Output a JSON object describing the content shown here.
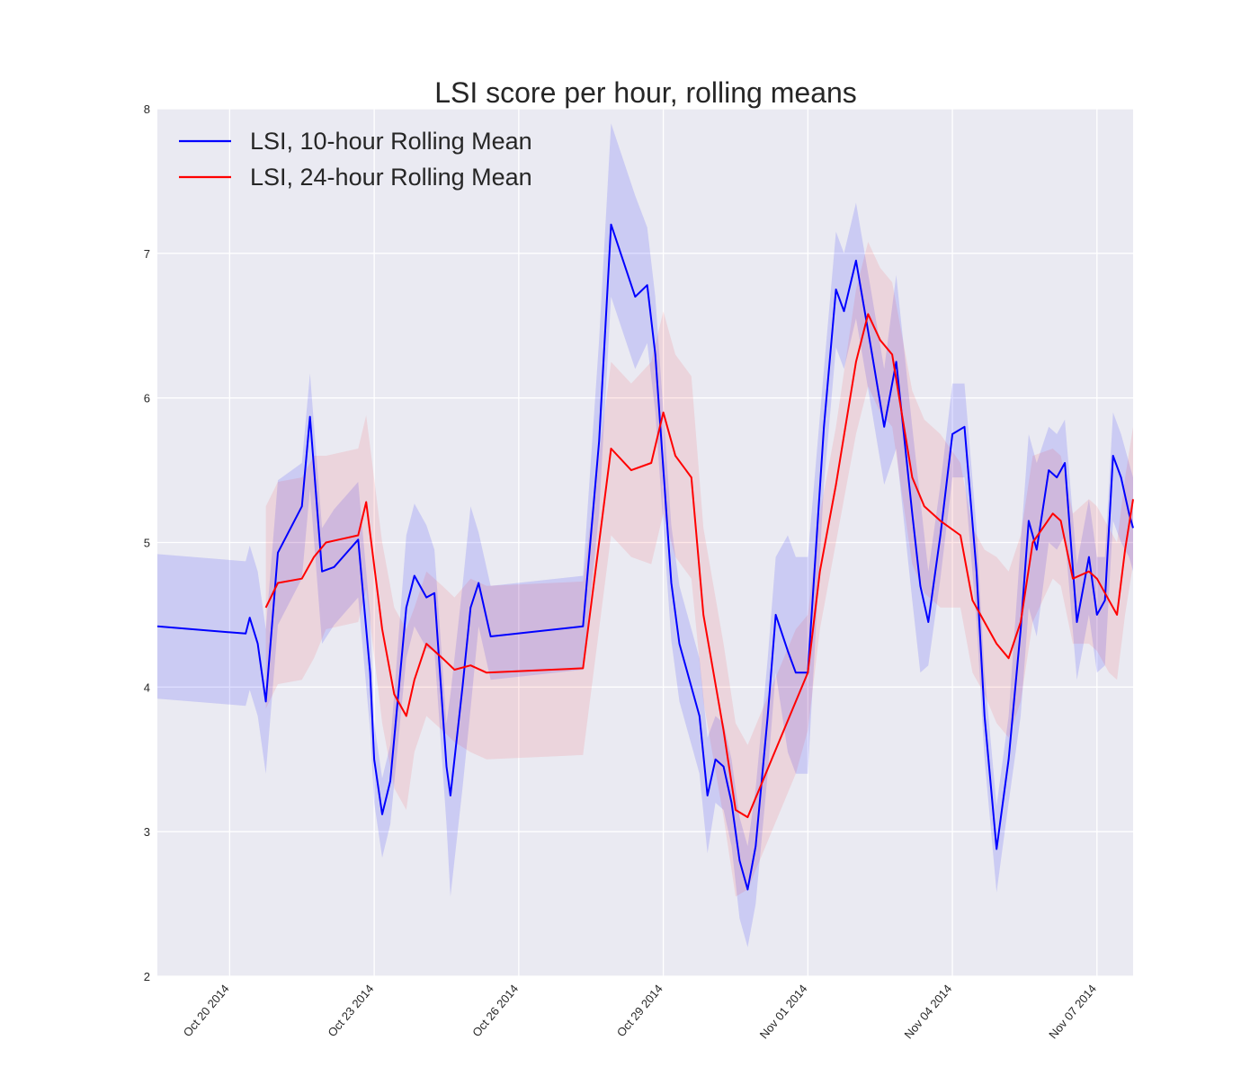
{
  "chart_data": {
    "type": "line",
    "title": "LSI score per hour, rolling means",
    "xlabel": "",
    "ylabel": "",
    "x_range": [
      "2014-10-18T12:00",
      "2014-11-07T18:00"
    ],
    "ylim": [
      2,
      8
    ],
    "y_ticks": [
      2,
      3,
      4,
      5,
      6,
      7,
      8
    ],
    "x_ticks": [
      {
        "date": "2014-10-20",
        "label": "Oct 20 2014"
      },
      {
        "date": "2014-10-23",
        "label": "Oct 23 2014"
      },
      {
        "date": "2014-10-26",
        "label": "Oct 26 2014"
      },
      {
        "date": "2014-10-29",
        "label": "Oct 29 2014"
      },
      {
        "date": "2014-11-01",
        "label": "Nov 01 2014"
      },
      {
        "date": "2014-11-04",
        "label": "Nov 04 2014"
      },
      {
        "date": "2014-11-07",
        "label": "Nov 07 2014"
      }
    ],
    "grid": true,
    "background": "#eaeaf2",
    "legend_position": "top-left",
    "series": [
      {
        "name": "LSI, 10-hour Rolling Mean",
        "color": "#0000ff",
        "band_color": "#0000ff",
        "band_opacity": 0.13,
        "band_halfwidth": [
          [
            0.5,
            0.5
          ],
          [
            0.5,
            0.5
          ],
          [
            0.3,
            0.5
          ],
          [
            0.4,
            0.4
          ],
          [
            0.25,
            0.3
          ],
          [
            0.5,
            0.35
          ],
          [
            0.3,
            0.4
          ],
          [
            0.7,
            0.7
          ],
          [
            0.35,
            0.3
          ],
          [
            0.7,
            0.5
          ],
          [
            0.4,
            0.4
          ],
          [
            0.4,
            0.4
          ],
          [
            0.3,
            0.3
          ],
          [
            0.3,
            0.4
          ],
          [
            0.4,
            0.4
          ],
          [
            0.8,
            0.7
          ],
          [
            0.4,
            0.4
          ],
          [
            0.4,
            0.4
          ],
          [
            0.6,
            0.6
          ],
          [
            0.35,
            0.3
          ],
          [
            0.3,
            0.35
          ],
          [
            0.3,
            0.3
          ],
          [
            0.6,
            0.6
          ],
          [
            0.3,
            0.5
          ],
          [
            0.4,
            0.4
          ],
          [
            0.3,
            0.45
          ],
          [
            0.35,
            0.3
          ]
        ],
        "points": [
          [
            "2014-10-18T12:00",
            4.42
          ],
          [
            "2014-10-20T08:00",
            4.37
          ],
          [
            "2014-10-20T10:00",
            4.48
          ],
          [
            "2014-10-20T14:00",
            4.3
          ],
          [
            "2014-10-20T18:00",
            3.9
          ],
          [
            "2014-10-21T00:00",
            4.93
          ],
          [
            "2014-10-21T12:00",
            5.25
          ],
          [
            "2014-10-21T16:00",
            5.87
          ],
          [
            "2014-10-21T22:00",
            4.8
          ],
          [
            "2014-10-22T04:00",
            4.83
          ],
          [
            "2014-10-22T16:00",
            5.02
          ],
          [
            "2014-10-22T22:00",
            4.1
          ],
          [
            "2014-10-23T00:00",
            3.5
          ],
          [
            "2014-10-23T04:00",
            3.12
          ],
          [
            "2014-10-23T08:00",
            3.35
          ],
          [
            "2014-10-23T16:00",
            4.55
          ],
          [
            "2014-10-23T20:00",
            4.77
          ],
          [
            "2014-10-24T02:00",
            4.62
          ],
          [
            "2014-10-24T06:00",
            4.65
          ],
          [
            "2014-10-24T12:00",
            3.45
          ],
          [
            "2014-10-24T14:00",
            3.25
          ],
          [
            "2014-10-24T20:00",
            4.0
          ],
          [
            "2014-10-25T00:00",
            4.55
          ],
          [
            "2014-10-25T04:00",
            4.72
          ],
          [
            "2014-10-25T10:00",
            4.35
          ],
          [
            "2014-10-27T08:00",
            4.42
          ],
          [
            "2014-10-27T16:00",
            5.7
          ],
          [
            "2014-10-27T22:00",
            7.2
          ],
          [
            "2014-10-28T10:00",
            6.7
          ],
          [
            "2014-10-28T16:00",
            6.78
          ],
          [
            "2014-10-28T20:00",
            6.3
          ],
          [
            "2014-10-29T04:00",
            4.72
          ],
          [
            "2014-10-29T08:00",
            4.3
          ],
          [
            "2014-10-29T18:00",
            3.8
          ],
          [
            "2014-10-29T22:00",
            3.25
          ],
          [
            "2014-10-30T02:00",
            3.5
          ],
          [
            "2014-10-30T06:00",
            3.45
          ],
          [
            "2014-10-30T10:00",
            3.2
          ],
          [
            "2014-10-30T14:00",
            2.8
          ],
          [
            "2014-10-30T18:00",
            2.6
          ],
          [
            "2014-10-30T22:00",
            2.9
          ],
          [
            "2014-10-31T04:00",
            3.8
          ],
          [
            "2014-10-31T08:00",
            4.5
          ],
          [
            "2014-10-31T14:00",
            4.25
          ],
          [
            "2014-10-31T18:00",
            4.1
          ],
          [
            "2014-11-01T00:00",
            4.1
          ],
          [
            "2014-11-01T08:00",
            5.8
          ],
          [
            "2014-11-01T14:00",
            6.75
          ],
          [
            "2014-11-01T18:00",
            6.6
          ],
          [
            "2014-11-02T00:00",
            6.95
          ],
          [
            "2014-11-02T08:00",
            6.3
          ],
          [
            "2014-11-02T14:00",
            5.8
          ],
          [
            "2014-11-02T20:00",
            6.25
          ],
          [
            "2014-11-03T04:00",
            5.2
          ],
          [
            "2014-11-03T08:00",
            4.7
          ],
          [
            "2014-11-03T12:00",
            4.45
          ],
          [
            "2014-11-03T18:00",
            5.05
          ],
          [
            "2014-11-04T00:00",
            5.75
          ],
          [
            "2014-11-04T06:00",
            5.8
          ],
          [
            "2014-11-04T12:00",
            4.8
          ],
          [
            "2014-11-04T16:00",
            3.8
          ],
          [
            "2014-11-04T22:00",
            2.88
          ],
          [
            "2014-11-05T04:00",
            3.5
          ],
          [
            "2014-11-05T10:00",
            4.4
          ],
          [
            "2014-11-05T14:00",
            5.15
          ],
          [
            "2014-11-05T18:00",
            4.95
          ],
          [
            "2014-11-06T00:00",
            5.5
          ],
          [
            "2014-11-06T04:00",
            5.45
          ],
          [
            "2014-11-06T08:00",
            5.55
          ],
          [
            "2014-11-06T14:00",
            4.45
          ],
          [
            "2014-11-06T20:00",
            4.9
          ],
          [
            "2014-11-07T00:00",
            4.5
          ],
          [
            "2014-11-07T04:00",
            4.6
          ],
          [
            "2014-11-07T08:00",
            5.6
          ],
          [
            "2014-11-07T12:00",
            5.45
          ],
          [
            "2014-11-07T16:00",
            5.2
          ],
          [
            "2014-11-07T18:00",
            5.1
          ]
        ]
      },
      {
        "name": "LSI, 24-hour Rolling Mean",
        "color": "#ff0000",
        "band_color": "#ff0000",
        "band_opacity": 0.09,
        "band_halfwidth": [
          [
            0.7,
            0.7
          ],
          [
            0.6,
            0.6
          ],
          [
            0.6,
            0.65
          ],
          [
            0.5,
            0.5
          ],
          [
            0.6,
            0.6
          ],
          [
            0.6,
            0.6
          ],
          [
            0.7,
            0.7
          ],
          [
            0.6,
            0.6
          ],
          [
            0.5,
            0.5
          ],
          [
            0.4,
            0.4
          ],
          [
            0.5,
            0.5
          ],
          [
            0.6,
            0.6
          ],
          [
            0.5,
            0.5
          ],
          [
            0.6,
            0.55
          ],
          [
            0.45,
            0.45
          ],
          [
            0.5,
            0.5
          ],
          [
            0.5,
            0.45
          ]
        ],
        "points": [
          [
            "2014-10-20T18:00",
            4.55
          ],
          [
            "2014-10-21T00:00",
            4.72
          ],
          [
            "2014-10-21T12:00",
            4.75
          ],
          [
            "2014-10-21T18:00",
            4.9
          ],
          [
            "2014-10-22T00:00",
            5.0
          ],
          [
            "2014-10-22T16:00",
            5.05
          ],
          [
            "2014-10-22T20:00",
            5.28
          ],
          [
            "2014-10-23T04:00",
            4.4
          ],
          [
            "2014-10-23T10:00",
            3.95
          ],
          [
            "2014-10-23T16:00",
            3.8
          ],
          [
            "2014-10-23T20:00",
            4.05
          ],
          [
            "2014-10-24T02:00",
            4.3
          ],
          [
            "2014-10-24T10:00",
            4.2
          ],
          [
            "2014-10-24T16:00",
            4.12
          ],
          [
            "2014-10-25T00:00",
            4.15
          ],
          [
            "2014-10-25T08:00",
            4.1
          ],
          [
            "2014-10-27T08:00",
            4.13
          ],
          [
            "2014-10-27T16:00",
            5.0
          ],
          [
            "2014-10-27T22:00",
            5.65
          ],
          [
            "2014-10-28T08:00",
            5.5
          ],
          [
            "2014-10-28T18:00",
            5.55
          ],
          [
            "2014-10-29T00:00",
            5.9
          ],
          [
            "2014-10-29T06:00",
            5.6
          ],
          [
            "2014-10-29T14:00",
            5.45
          ],
          [
            "2014-10-29T20:00",
            4.5
          ],
          [
            "2014-10-30T06:00",
            3.7
          ],
          [
            "2014-10-30T12:00",
            3.15
          ],
          [
            "2014-10-30T18:00",
            3.1
          ],
          [
            "2014-10-31T06:00",
            3.5
          ],
          [
            "2014-10-31T18:00",
            3.9
          ],
          [
            "2014-11-01T00:00",
            4.1
          ],
          [
            "2014-11-01T06:00",
            4.8
          ],
          [
            "2014-11-01T14:00",
            5.4
          ],
          [
            "2014-11-02T00:00",
            6.25
          ],
          [
            "2014-11-02T06:00",
            6.58
          ],
          [
            "2014-11-02T12:00",
            6.4
          ],
          [
            "2014-11-02T18:00",
            6.3
          ],
          [
            "2014-11-03T04:00",
            5.45
          ],
          [
            "2014-11-03T10:00",
            5.25
          ],
          [
            "2014-11-03T18:00",
            5.15
          ],
          [
            "2014-11-04T04:00",
            5.05
          ],
          [
            "2014-11-04T10:00",
            4.6
          ],
          [
            "2014-11-04T16:00",
            4.45
          ],
          [
            "2014-11-04T22:00",
            4.3
          ],
          [
            "2014-11-05T04:00",
            4.2
          ],
          [
            "2014-11-05T10:00",
            4.45
          ],
          [
            "2014-11-05T16:00",
            5.0
          ],
          [
            "2014-11-06T02:00",
            5.2
          ],
          [
            "2014-11-06T06:00",
            5.15
          ],
          [
            "2014-11-06T12:00",
            4.75
          ],
          [
            "2014-11-06T20:00",
            4.8
          ],
          [
            "2014-11-07T00:00",
            4.75
          ],
          [
            "2014-11-07T06:00",
            4.6
          ],
          [
            "2014-11-07T10:00",
            4.5
          ],
          [
            "2014-11-07T14:00",
            4.95
          ],
          [
            "2014-11-07T18:00",
            5.3
          ]
        ]
      }
    ]
  }
}
